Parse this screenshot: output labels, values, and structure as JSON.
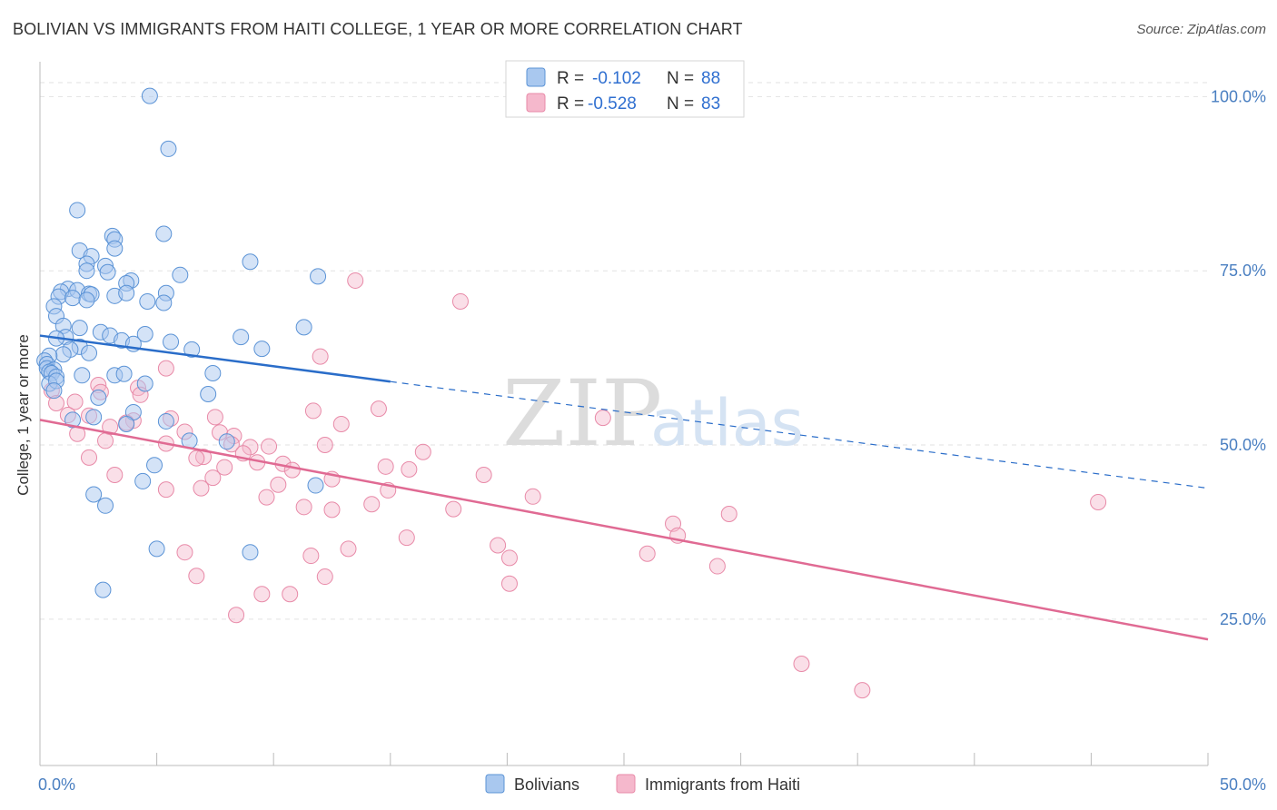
{
  "title": "BOLIVIAN VS IMMIGRANTS FROM HAITI COLLEGE, 1 YEAR OR MORE CORRELATION CHART",
  "source": "Source: ZipAtlas.com",
  "watermark": {
    "part1": "ZIP",
    "part2": "atlas"
  },
  "colors": {
    "blue_fill": "#a9c8ef",
    "blue_stroke": "#5b93d6",
    "blue_line": "#2a6dc9",
    "pink_fill": "#f5b8cc",
    "pink_stroke": "#e88aa8",
    "pink_line": "#e06a93",
    "grid": "#e2e2e2",
    "axis_text": "#4a7fc1"
  },
  "legend": {
    "rows": [
      {
        "r_label": "R =",
        "r_value": "-0.102",
        "n_label": "N =",
        "n_value": "88"
      },
      {
        "r_label": "R =",
        "r_value": "-0.528",
        "n_label": "N =",
        "n_value": "83"
      }
    ]
  },
  "chart_data": {
    "type": "scatter",
    "title": "BOLIVIAN VS IMMIGRANTS FROM HAITI COLLEGE, 1 YEAR OR MORE CORRELATION CHART",
    "ylabel": "College, 1 year or more",
    "xlabel": "",
    "xlim": [
      0,
      50
    ],
    "ylim": [
      4,
      105
    ],
    "x_tick_labels": [
      "0.0%",
      "50.0%"
    ],
    "y_ticks": [
      25,
      50,
      75,
      100
    ],
    "y_tick_labels": [
      "25.0%",
      "50.0%",
      "75.0%",
      "100.0%"
    ],
    "grid": true,
    "legend_position": "bottom",
    "series": [
      {
        "name": "Bolivians",
        "color": "#a9c8ef",
        "trend": {
          "x0": 0,
          "y0": 65.7,
          "x1": 15,
          "y1": 59.1,
          "dashed_to_x": 50,
          "dashed_to_y": 43.8
        },
        "points": [
          [
            4.7,
            100.1
          ],
          [
            5.5,
            92.5
          ],
          [
            1.6,
            83.7
          ],
          [
            5.3,
            80.3
          ],
          [
            3.1,
            80.0
          ],
          [
            3.2,
            79.5
          ],
          [
            1.7,
            77.9
          ],
          [
            3.2,
            78.2
          ],
          [
            2.2,
            77.1
          ],
          [
            2.0,
            76.0
          ],
          [
            2.8,
            75.7
          ],
          [
            9.0,
            76.3
          ],
          [
            2.9,
            74.8
          ],
          [
            6.0,
            74.4
          ],
          [
            11.9,
            74.2
          ],
          [
            2.0,
            75.0
          ],
          [
            3.9,
            73.6
          ],
          [
            3.7,
            73.2
          ],
          [
            1.2,
            72.4
          ],
          [
            1.6,
            72.2
          ],
          [
            0.9,
            72.0
          ],
          [
            2.1,
            71.7
          ],
          [
            2.2,
            71.6
          ],
          [
            3.2,
            71.4
          ],
          [
            0.8,
            71.3
          ],
          [
            1.4,
            71.1
          ],
          [
            3.7,
            71.8
          ],
          [
            5.4,
            71.8
          ],
          [
            4.6,
            70.6
          ],
          [
            5.3,
            70.4
          ],
          [
            2.0,
            70.8
          ],
          [
            0.6,
            69.9
          ],
          [
            0.7,
            68.5
          ],
          [
            11.3,
            66.9
          ],
          [
            1.0,
            67.1
          ],
          [
            1.7,
            66.8
          ],
          [
            2.6,
            66.2
          ],
          [
            3.0,
            65.7
          ],
          [
            8.6,
            65.5
          ],
          [
            4.5,
            65.9
          ],
          [
            1.1,
            65.5
          ],
          [
            0.7,
            65.3
          ],
          [
            3.5,
            65.0
          ],
          [
            4.0,
            64.5
          ],
          [
            5.6,
            64.8
          ],
          [
            6.5,
            63.7
          ],
          [
            1.7,
            64.1
          ],
          [
            1.3,
            63.7
          ],
          [
            2.1,
            63.2
          ],
          [
            9.5,
            63.8
          ],
          [
            1.0,
            63.0
          ],
          [
            0.4,
            62.8
          ],
          [
            0.2,
            62.1
          ],
          [
            0.3,
            61.6
          ],
          [
            0.3,
            61.0
          ],
          [
            0.6,
            60.8
          ],
          [
            0.4,
            60.5
          ],
          [
            0.5,
            60.3
          ],
          [
            0.7,
            59.8
          ],
          [
            1.8,
            60.0
          ],
          [
            3.2,
            60.0
          ],
          [
            3.6,
            60.2
          ],
          [
            7.4,
            60.3
          ],
          [
            4.5,
            58.8
          ],
          [
            0.4,
            58.8
          ],
          [
            0.7,
            59.2
          ],
          [
            0.6,
            57.8
          ],
          [
            7.2,
            57.3
          ],
          [
            2.5,
            56.8
          ],
          [
            4.0,
            54.7
          ],
          [
            5.4,
            53.4
          ],
          [
            2.3,
            54.0
          ],
          [
            1.4,
            53.6
          ],
          [
            3.7,
            53.0
          ],
          [
            6.4,
            50.6
          ],
          [
            8.0,
            50.5
          ],
          [
            4.9,
            47.1
          ],
          [
            4.4,
            44.8
          ],
          [
            11.8,
            44.2
          ],
          [
            2.3,
            42.9
          ],
          [
            2.8,
            41.3
          ],
          [
            5.0,
            35.1
          ],
          [
            9.0,
            34.6
          ],
          [
            2.7,
            29.2
          ]
        ]
      },
      {
        "name": "Immigrants from Haiti",
        "color": "#f5b8cc",
        "trend": {
          "x0": 0,
          "y0": 53.6,
          "x1": 50,
          "y1": 22.1
        },
        "points": [
          [
            13.5,
            73.6
          ],
          [
            18.0,
            70.6
          ],
          [
            12.0,
            62.7
          ],
          [
            5.4,
            61.0
          ],
          [
            4.2,
            58.2
          ],
          [
            2.5,
            58.6
          ],
          [
            4.3,
            57.2
          ],
          [
            0.5,
            57.8
          ],
          [
            1.5,
            56.2
          ],
          [
            0.7,
            56.0
          ],
          [
            2.6,
            57.6
          ],
          [
            14.5,
            55.2
          ],
          [
            11.7,
            54.9
          ],
          [
            7.5,
            54.0
          ],
          [
            2.1,
            54.2
          ],
          [
            1.2,
            54.3
          ],
          [
            5.6,
            53.8
          ],
          [
            4.0,
            53.5
          ],
          [
            3.7,
            53.2
          ],
          [
            12.9,
            53.0
          ],
          [
            24.1,
            53.9
          ],
          [
            3.0,
            52.6
          ],
          [
            6.2,
            51.9
          ],
          [
            7.7,
            51.8
          ],
          [
            8.3,
            51.3
          ],
          [
            1.6,
            51.6
          ],
          [
            2.8,
            50.6
          ],
          [
            8.2,
            50.1
          ],
          [
            9.0,
            49.7
          ],
          [
            9.8,
            49.8
          ],
          [
            12.2,
            50.0
          ],
          [
            5.4,
            50.2
          ],
          [
            16.4,
            49.0
          ],
          [
            7.0,
            48.3
          ],
          [
            8.7,
            48.8
          ],
          [
            6.7,
            48.1
          ],
          [
            2.1,
            48.2
          ],
          [
            9.3,
            47.5
          ],
          [
            10.4,
            47.3
          ],
          [
            14.8,
            46.9
          ],
          [
            7.9,
            46.8
          ],
          [
            10.8,
            46.4
          ],
          [
            15.8,
            46.5
          ],
          [
            3.2,
            45.7
          ],
          [
            7.4,
            45.3
          ],
          [
            19.0,
            45.7
          ],
          [
            12.5,
            45.1
          ],
          [
            10.2,
            44.3
          ],
          [
            6.9,
            43.8
          ],
          [
            14.9,
            43.5
          ],
          [
            5.4,
            43.6
          ],
          [
            21.1,
            42.6
          ],
          [
            9.7,
            42.5
          ],
          [
            14.2,
            41.5
          ],
          [
            11.3,
            41.1
          ],
          [
            17.7,
            40.8
          ],
          [
            12.5,
            40.7
          ],
          [
            29.5,
            40.1
          ],
          [
            45.3,
            41.8
          ],
          [
            27.1,
            38.7
          ],
          [
            27.3,
            37.0
          ],
          [
            15.7,
            36.7
          ],
          [
            19.6,
            35.6
          ],
          [
            6.2,
            34.6
          ],
          [
            11.6,
            34.1
          ],
          [
            13.2,
            35.1
          ],
          [
            20.1,
            33.8
          ],
          [
            26.0,
            34.4
          ],
          [
            29.0,
            32.6
          ],
          [
            6.7,
            31.2
          ],
          [
            12.2,
            31.1
          ],
          [
            20.1,
            30.1
          ],
          [
            9.5,
            28.6
          ],
          [
            10.7,
            28.6
          ],
          [
            8.4,
            25.6
          ],
          [
            32.6,
            18.6
          ],
          [
            35.2,
            14.8
          ]
        ]
      }
    ]
  }
}
